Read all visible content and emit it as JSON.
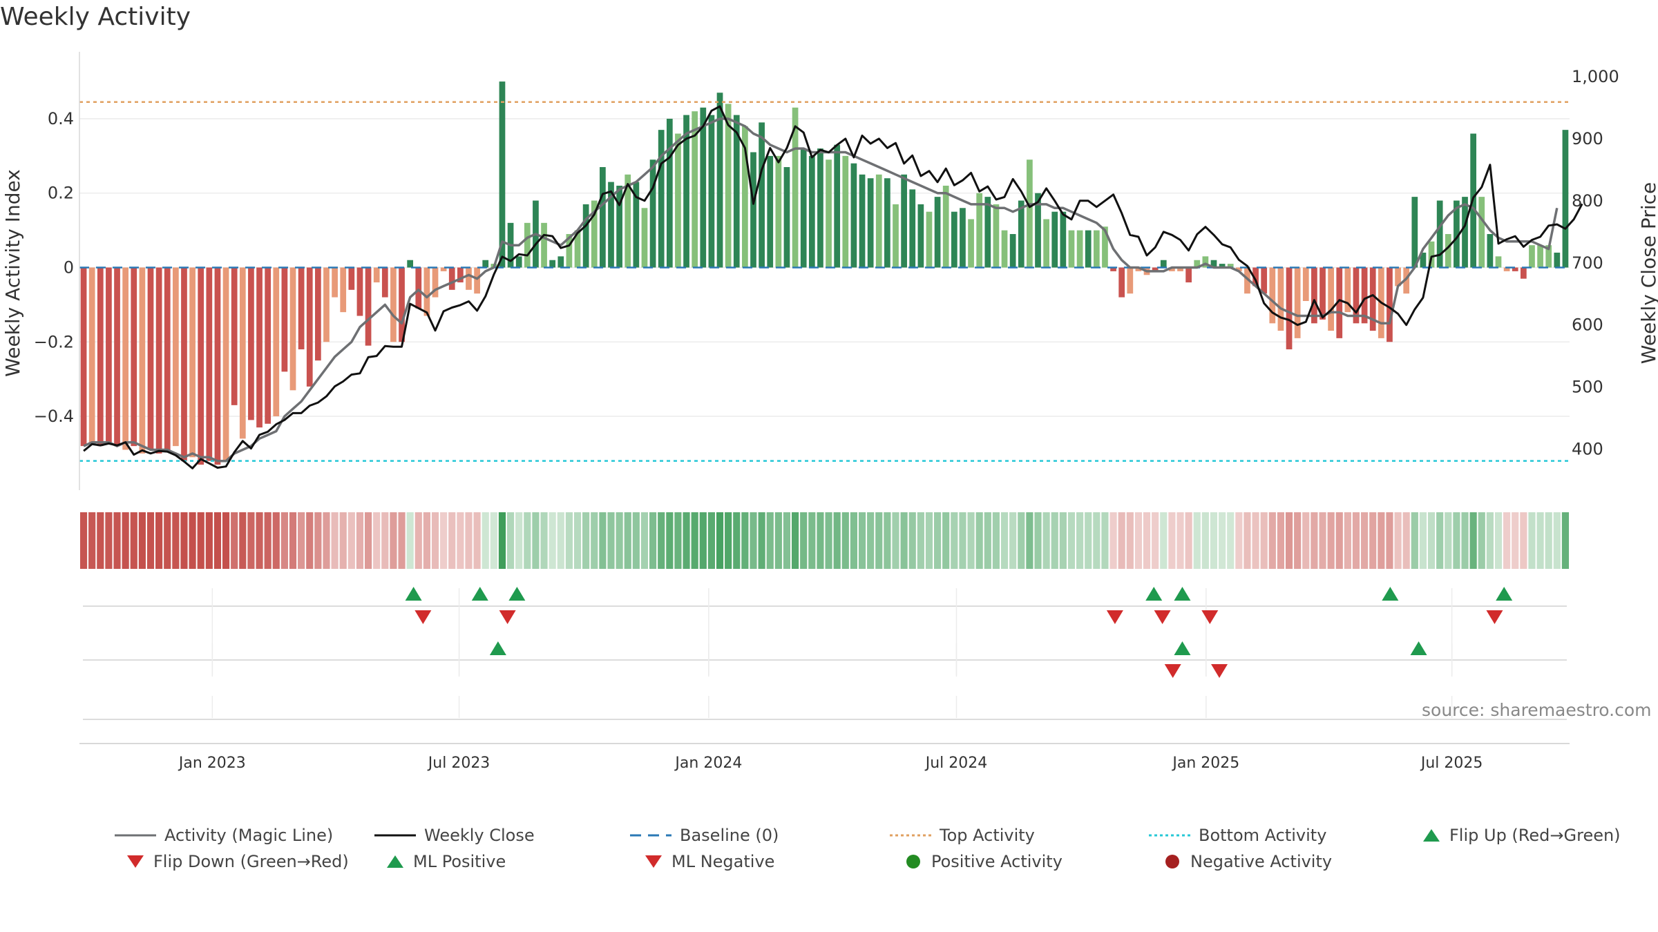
{
  "title": "Weekly Activity",
  "source": "source: sharemaestro.com",
  "colors": {
    "green_dark": "#2e8555",
    "green_light": "#86c07a",
    "red_dark": "#c9524f",
    "red_light": "#e89a78",
    "magic_line": "#6e7073",
    "close_line": "#111111",
    "baseline": "#2a78b5",
    "top": "#e0a060",
    "bottom": "#26c8d6",
    "marker_up": "#1f9a4e",
    "marker_down": "#d12b2b",
    "positive": "#238b22",
    "negative": "#a52020"
  },
  "chart_data": {
    "type": "bar",
    "title": "Weekly Activity",
    "ylabel": "Weekly Activity Index",
    "y2label": "Weekly Close Price",
    "ylim": [
      -0.58,
      0.58
    ],
    "y2lim": [
      345,
      1040
    ],
    "yticks": [
      0.4,
      0.2,
      0,
      -0.2,
      -0.4
    ],
    "ytick_labels": [
      "0.4",
      "0.2",
      "0",
      "−0.2",
      "−0.4"
    ],
    "y2ticks": [
      1000,
      900,
      800,
      700,
      600,
      500,
      400
    ],
    "y2tick_labels": [
      "1,000",
      "900",
      "800",
      "700",
      "600",
      "500",
      "400"
    ],
    "x_range_weeks": [
      0,
      157
    ],
    "xticks": [
      {
        "label": "Jan 2023",
        "week": 14
      },
      {
        "label": "Jul 2023",
        "week": 40
      },
      {
        "label": "Jan 2024",
        "week": 66.3
      },
      {
        "label": "Jul 2024",
        "week": 92.4
      },
      {
        "label": "Jan 2025",
        "week": 118.7
      },
      {
        "label": "Jul 2025",
        "week": 144.6
      }
    ],
    "top_activity": 0.445,
    "bottom_activity": -0.52,
    "baseline": 0,
    "activity": [
      -0.48,
      -0.47,
      -0.48,
      -0.47,
      -0.48,
      -0.49,
      -0.48,
      -0.5,
      -0.49,
      -0.5,
      -0.49,
      -0.48,
      -0.52,
      -0.51,
      -0.53,
      -0.52,
      -0.53,
      -0.52,
      -0.37,
      -0.46,
      -0.41,
      -0.43,
      -0.42,
      -0.4,
      -0.28,
      -0.33,
      -0.22,
      -0.32,
      -0.25,
      -0.2,
      -0.08,
      -0.12,
      -0.06,
      -0.13,
      -0.21,
      -0.04,
      -0.08,
      -0.2,
      -0.2,
      0.02,
      -0.11,
      -0.13,
      -0.08,
      -0.01,
      -0.06,
      -0.04,
      -0.06,
      -0.07,
      0.02,
      0.01,
      0.5,
      0.12,
      0.03,
      0.12,
      0.18,
      0.12,
      0.02,
      0.03,
      0.09,
      0.1,
      0.17,
      0.18,
      0.27,
      0.23,
      0.22,
      0.25,
      0.23,
      0.16,
      0.29,
      0.37,
      0.4,
      0.36,
      0.41,
      0.42,
      0.43,
      0.41,
      0.47,
      0.44,
      0.41,
      0.38,
      0.31,
      0.39,
      0.3,
      0.3,
      0.27,
      0.43,
      0.32,
      0.3,
      0.32,
      0.29,
      0.33,
      0.3,
      0.28,
      0.25,
      0.24,
      0.25,
      0.24,
      0.17,
      0.25,
      0.21,
      0.17,
      0.15,
      0.19,
      0.22,
      0.15,
      0.16,
      0.13,
      0.2,
      0.19,
      0.17,
      0.1,
      0.09,
      0.18,
      0.29,
      0.2,
      0.13,
      0.15,
      0.15,
      0.1,
      0.1,
      0.1,
      0.1,
      0.11,
      -0.01,
      -0.08,
      -0.07,
      -0.01,
      -0.02,
      -0.01,
      0.02,
      -0.01,
      -0.01,
      -0.04,
      0.02,
      0.03,
      0.02,
      0.01,
      0.01,
      -0.01,
      -0.07,
      -0.05,
      -0.07,
      -0.15,
      -0.17,
      -0.22,
      -0.19,
      -0.09,
      -0.15,
      -0.14,
      -0.17,
      -0.19,
      -0.12,
      -0.15,
      -0.15,
      -0.17,
      -0.19,
      -0.2,
      -0.05,
      -0.07,
      0.19,
      0.04,
      0.07,
      0.18,
      0.09,
      0.18,
      0.19,
      0.36,
      0.19,
      0.09,
      0.03,
      -0.01,
      -0.01,
      -0.03,
      0.06,
      0.06,
      0.06,
      0.04,
      0.37
    ],
    "magic_line": [
      -0.48,
      -0.47,
      -0.47,
      -0.47,
      -0.48,
      -0.47,
      -0.47,
      -0.48,
      -0.49,
      -0.49,
      -0.49,
      -0.5,
      -0.51,
      -0.5,
      -0.51,
      -0.51,
      -0.52,
      -0.52,
      -0.5,
      -0.49,
      -0.48,
      -0.46,
      -0.45,
      -0.44,
      -0.4,
      -0.38,
      -0.36,
      -0.33,
      -0.3,
      -0.27,
      -0.24,
      -0.22,
      -0.2,
      -0.16,
      -0.14,
      -0.12,
      -0.1,
      -0.13,
      -0.15,
      -0.08,
      -0.06,
      -0.08,
      -0.06,
      -0.05,
      -0.04,
      -0.03,
      -0.02,
      -0.03,
      -0.01,
      0.0,
      0.07,
      0.06,
      0.06,
      0.08,
      0.09,
      0.08,
      0.07,
      0.06,
      0.08,
      0.1,
      0.13,
      0.15,
      0.17,
      0.19,
      0.21,
      0.22,
      0.23,
      0.25,
      0.27,
      0.3,
      0.32,
      0.34,
      0.36,
      0.37,
      0.38,
      0.39,
      0.4,
      0.4,
      0.39,
      0.38,
      0.36,
      0.35,
      0.33,
      0.32,
      0.31,
      0.32,
      0.32,
      0.31,
      0.31,
      0.31,
      0.31,
      0.31,
      0.3,
      0.29,
      0.28,
      0.27,
      0.26,
      0.25,
      0.24,
      0.23,
      0.22,
      0.21,
      0.2,
      0.2,
      0.19,
      0.18,
      0.17,
      0.17,
      0.17,
      0.16,
      0.16,
      0.15,
      0.16,
      0.17,
      0.17,
      0.17,
      0.16,
      0.16,
      0.15,
      0.14,
      0.13,
      0.12,
      0.1,
      0.05,
      0.02,
      0.0,
      0.0,
      -0.01,
      -0.01,
      -0.01,
      0.0,
      0.0,
      0.0,
      0.0,
      0.01,
      0.0,
      0.0,
      0.0,
      -0.01,
      -0.03,
      -0.05,
      -0.07,
      -0.09,
      -0.11,
      -0.12,
      -0.13,
      -0.13,
      -0.13,
      -0.13,
      -0.12,
      -0.12,
      -0.13,
      -0.13,
      -0.13,
      -0.14,
      -0.15,
      -0.15,
      -0.05,
      -0.03,
      0.0,
      0.05,
      0.08,
      0.11,
      0.14,
      0.16,
      0.17,
      0.16,
      0.13,
      0.1,
      0.08,
      0.07,
      0.07,
      0.07,
      0.07,
      0.06,
      0.05,
      0.16
    ],
    "weekly_close": [
      397,
      408,
      406,
      409,
      406,
      411,
      391,
      398,
      393,
      397,
      396,
      390,
      380,
      369,
      384,
      377,
      370,
      372,
      395,
      413,
      401,
      423,
      428,
      440,
      447,
      458,
      458,
      470,
      475,
      485,
      501,
      509,
      520,
      522,
      548,
      550,
      566,
      565,
      565,
      634,
      627,
      620,
      591,
      622,
      628,
      632,
      638,
      623,
      646,
      681,
      710,
      703,
      714,
      712,
      730,
      745,
      743,
      724,
      728,
      748,
      760,
      778,
      811,
      815,
      793,
      827,
      806,
      800,
      821,
      860,
      870,
      890,
      900,
      905,
      920,
      945,
      952,
      922,
      910,
      885,
      795,
      850,
      885,
      862,
      885,
      920,
      910,
      870,
      882,
      878,
      890,
      900,
      870,
      905,
      892,
      900,
      885,
      893,
      860,
      873,
      840,
      848,
      830,
      852,
      825,
      833,
      845,
      815,
      823,
      802,
      806,
      835,
      815,
      790,
      798,
      820,
      800,
      778,
      770,
      800,
      800,
      790,
      800,
      810,
      780,
      745,
      742,
      712,
      725,
      750,
      745,
      737,
      720,
      746,
      758,
      745,
      730,
      725,
      705,
      695,
      672,
      635,
      620,
      612,
      608,
      600,
      605,
      640,
      612,
      624,
      640,
      635,
      620,
      642,
      648,
      636,
      628,
      618,
      600,
      625,
      644,
      710,
      713,
      725,
      740,
      760,
      805,
      822,
      858,
      731,
      738,
      743,
      726,
      737,
      742,
      760,
      762,
      755,
      770,
      795
    ],
    "heatmap_strip": [
      -0.48,
      -0.47,
      -0.48,
      -0.47,
      -0.48,
      -0.49,
      -0.48,
      -0.5,
      -0.49,
      -0.5,
      -0.49,
      -0.48,
      -0.52,
      -0.51,
      -0.53,
      -0.52,
      -0.53,
      -0.52,
      -0.37,
      -0.46,
      -0.41,
      -0.43,
      -0.42,
      -0.4,
      -0.28,
      -0.33,
      -0.22,
      -0.32,
      -0.25,
      -0.2,
      -0.08,
      -0.12,
      -0.06,
      -0.13,
      -0.21,
      -0.04,
      -0.08,
      -0.2,
      -0.2,
      0.02,
      -0.11,
      -0.13,
      -0.08,
      -0.01,
      -0.06,
      -0.04,
      -0.06,
      -0.07,
      0.02,
      0.01,
      0.5,
      0.12,
      0.03,
      0.12,
      0.18,
      0.12,
      0.02,
      0.03,
      0.09,
      0.1,
      0.17,
      0.18,
      0.27,
      0.23,
      0.22,
      0.25,
      0.23,
      0.16,
      0.29,
      0.37,
      0.4,
      0.36,
      0.41,
      0.42,
      0.43,
      0.41,
      0.47,
      0.44,
      0.41,
      0.38,
      0.31,
      0.39,
      0.3,
      0.3,
      0.27,
      0.43,
      0.32,
      0.3,
      0.32,
      0.29,
      0.33,
      0.3,
      0.28,
      0.25,
      0.24,
      0.25,
      0.24,
      0.17,
      0.25,
      0.21,
      0.17,
      0.15,
      0.19,
      0.22,
      0.15,
      0.16,
      0.13,
      0.2,
      0.19,
      0.17,
      0.1,
      0.09,
      0.18,
      0.29,
      0.2,
      0.13,
      0.15,
      0.15,
      0.1,
      0.1,
      0.1,
      0.1,
      0.11,
      -0.01,
      -0.08,
      -0.07,
      -0.01,
      -0.02,
      -0.01,
      0.02,
      -0.01,
      -0.01,
      -0.04,
      0.02,
      0.03,
      0.02,
      0.01,
      0.01,
      -0.01,
      -0.07,
      -0.05,
      -0.07,
      -0.15,
      -0.17,
      -0.22,
      -0.19,
      -0.09,
      -0.15,
      -0.14,
      -0.17,
      -0.19,
      -0.12,
      -0.15,
      -0.15,
      -0.17,
      -0.19,
      -0.2,
      -0.05,
      -0.07,
      0.19,
      0.04,
      0.07,
      0.18,
      0.09,
      0.18,
      0.19,
      0.36,
      0.19,
      0.09,
      0.03,
      -0.01,
      -0.01,
      -0.03,
      0.06,
      0.06,
      0.06,
      0.04,
      0.37
    ],
    "flip_up_weeks": [
      35.2,
      42.2,
      46.1,
      113.2,
      116.2,
      138.1,
      150.1
    ],
    "flip_down_weeks": [
      36.2,
      45.1,
      109.1,
      114.1,
      119.1,
      149.1
    ],
    "ml_positive_weeks": [
      44.1,
      116.2,
      141.1
    ],
    "ml_negative_weeks": [
      115.2,
      120.1
    ],
    "legend": [
      {
        "key": "magic",
        "label": "Activity (Magic Line)"
      },
      {
        "key": "close",
        "label": "Weekly Close"
      },
      {
        "key": "baseline",
        "label": "Baseline (0)"
      },
      {
        "key": "top",
        "label": "Top Activity"
      },
      {
        "key": "bottom",
        "label": "Bottom Activity"
      },
      {
        "key": "flipup",
        "label": "Flip Up (Red→Green)"
      },
      {
        "key": "flipdown",
        "label": "Flip Down (Green→Red)"
      },
      {
        "key": "mlpos",
        "label": "ML Positive"
      },
      {
        "key": "mlneg",
        "label": "ML Negative"
      },
      {
        "key": "posact",
        "label": "Positive Activity"
      },
      {
        "key": "negact",
        "label": "Negative Activity"
      }
    ]
  }
}
